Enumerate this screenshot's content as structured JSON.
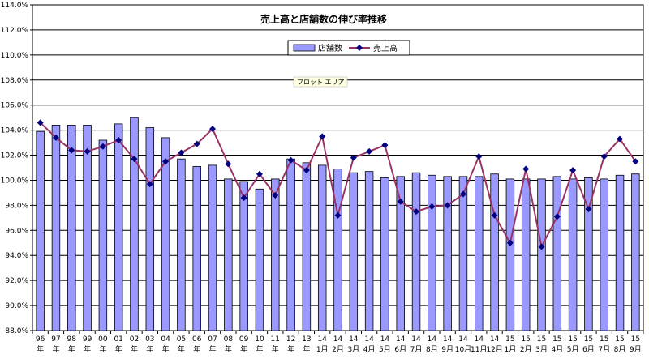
{
  "chart_data": {
    "type": "bar",
    "title": "売上高と店舗数の伸び率推移",
    "ylim": [
      88.0,
      114.0
    ],
    "yticks": [
      "88.0%",
      "90.0%",
      "92.0%",
      "94.0%",
      "96.0%",
      "98.0%",
      "100.0%",
      "102.0%",
      "104.0%",
      "106.0%",
      "108.0%",
      "110.0%",
      "112.0%",
      "114.0%"
    ],
    "ytick_values": [
      88,
      90,
      92,
      94,
      96,
      98,
      100,
      102,
      104,
      106,
      108,
      110,
      112,
      114
    ],
    "grid": true,
    "legend": {
      "position": "top-center"
    },
    "categories": [
      {
        "top": "96",
        "bottom": "年"
      },
      {
        "top": "97",
        "bottom": "年"
      },
      {
        "top": "98",
        "bottom": "年"
      },
      {
        "top": "99",
        "bottom": "年"
      },
      {
        "top": "00",
        "bottom": "年"
      },
      {
        "top": "01",
        "bottom": "年"
      },
      {
        "top": "02",
        "bottom": "年"
      },
      {
        "top": "03",
        "bottom": "年"
      },
      {
        "top": "04",
        "bottom": "年"
      },
      {
        "top": "05",
        "bottom": "年"
      },
      {
        "top": "06",
        "bottom": "年"
      },
      {
        "top": "07",
        "bottom": "年"
      },
      {
        "top": "08",
        "bottom": "年"
      },
      {
        "top": "09",
        "bottom": "年"
      },
      {
        "top": "10",
        "bottom": "年"
      },
      {
        "top": "11",
        "bottom": "年"
      },
      {
        "top": "12",
        "bottom": "年"
      },
      {
        "top": "13",
        "bottom": "年"
      },
      {
        "top": "14",
        "bottom": "1月"
      },
      {
        "top": "14",
        "bottom": "2月"
      },
      {
        "top": "14",
        "bottom": "3月"
      },
      {
        "top": "14",
        "bottom": "4月"
      },
      {
        "top": "14",
        "bottom": "5月"
      },
      {
        "top": "14",
        "bottom": "6月"
      },
      {
        "top": "14",
        "bottom": "7月"
      },
      {
        "top": "14",
        "bottom": "8月"
      },
      {
        "top": "14",
        "bottom": "9月"
      },
      {
        "top": "14",
        "bottom": "10月"
      },
      {
        "top": "14",
        "bottom": "11月"
      },
      {
        "top": "14",
        "bottom": "12月"
      },
      {
        "top": "15",
        "bottom": "1月"
      },
      {
        "top": "15",
        "bottom": "2月"
      },
      {
        "top": "15",
        "bottom": "3月"
      },
      {
        "top": "15",
        "bottom": "4月"
      },
      {
        "top": "15",
        "bottom": "5月"
      },
      {
        "top": "15",
        "bottom": "6月"
      },
      {
        "top": "15",
        "bottom": "7月"
      },
      {
        "top": "15",
        "bottom": "8月"
      },
      {
        "top": "15",
        "bottom": "9月"
      }
    ],
    "series": [
      {
        "name": "店舗数",
        "type": "bar",
        "color": "#9999ff",
        "values": [
          103.9,
          104.4,
          104.4,
          104.4,
          103.2,
          104.5,
          105.0,
          104.2,
          103.4,
          101.7,
          101.1,
          101.2,
          100.1,
          99.9,
          99.3,
          100.1,
          101.7,
          101.4,
          101.2,
          100.9,
          100.6,
          100.7,
          100.2,
          100.3,
          100.6,
          100.4,
          100.3,
          100.3,
          100.3,
          100.5,
          100.1,
          100.1,
          100.1,
          100.3,
          100.1,
          100.2,
          100.1,
          100.4,
          100.5
        ]
      },
      {
        "name": "売上高",
        "type": "line",
        "color": "#993366",
        "marker_color": "#000080",
        "values": [
          104.6,
          103.4,
          102.4,
          102.3,
          102.7,
          103.2,
          101.7,
          99.7,
          101.5,
          102.2,
          102.9,
          104.1,
          101.3,
          98.6,
          100.5,
          98.8,
          101.6,
          100.8,
          103.5,
          97.2,
          101.8,
          102.3,
          102.8,
          98.3,
          97.5,
          97.9,
          98.0,
          98.9,
          101.9,
          97.2,
          95.0,
          100.9,
          94.7,
          97.1,
          100.8,
          97.7,
          101.9,
          103.3,
          101.5
        ]
      }
    ],
    "annotation": "プロット エリア"
  }
}
